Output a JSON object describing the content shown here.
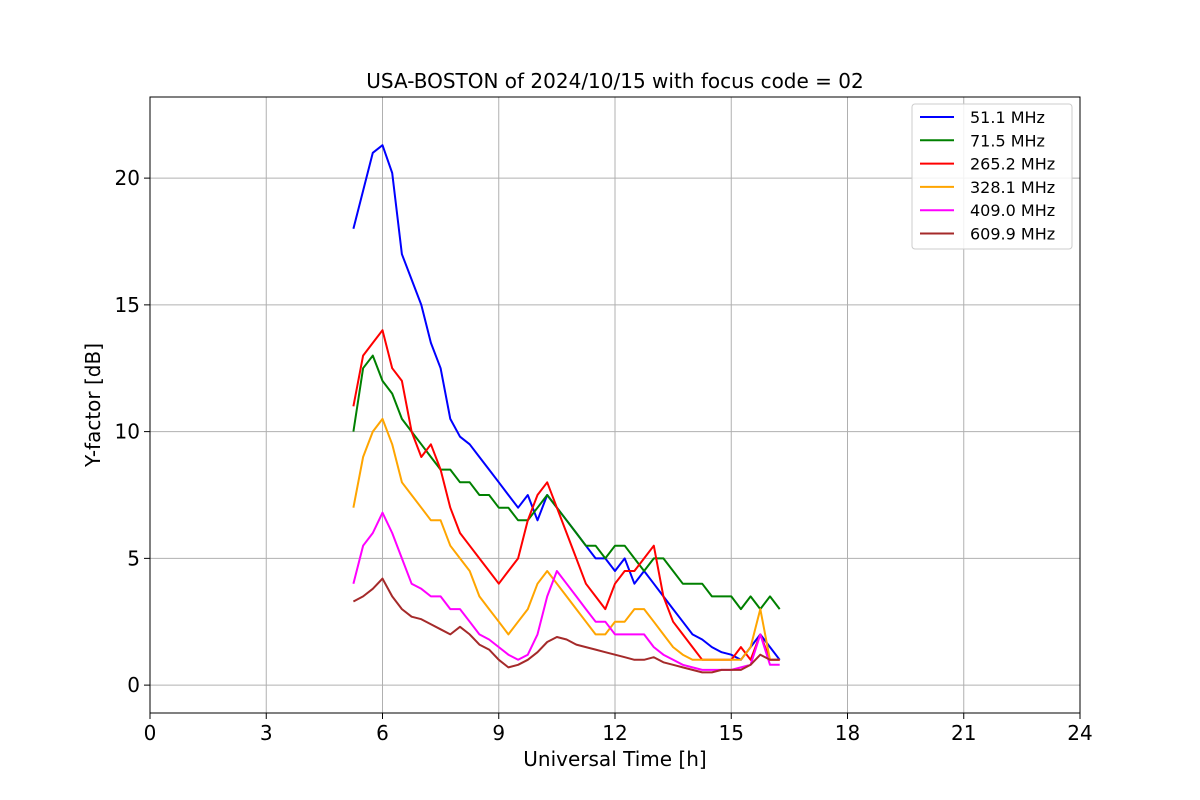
{
  "chart_data": {
    "type": "line",
    "title": "USA-BOSTON of 2024/10/15 with focus code = 02",
    "xlabel": "Universal Time [h]",
    "ylabel": "Y-factor [dB]",
    "xlim": [
      0,
      24
    ],
    "ylim": [
      -1.1,
      23.2
    ],
    "xticks": [
      0,
      3,
      6,
      9,
      12,
      15,
      18,
      21,
      24
    ],
    "yticks": [
      0,
      5,
      10,
      15,
      20
    ],
    "grid": true,
    "legend_position": "top-right",
    "series": [
      {
        "name": "51.1 MHz",
        "color": "#0000ff",
        "x": [
          5.25,
          5.5,
          5.75,
          6.0,
          6.25,
          6.5,
          6.75,
          7.0,
          7.25,
          7.5,
          7.75,
          8.0,
          8.25,
          8.5,
          8.75,
          9.0,
          9.25,
          9.5,
          9.75,
          10.0,
          10.25,
          10.5,
          10.75,
          11.0,
          11.25,
          11.5,
          11.75,
          12.0,
          12.25,
          12.5,
          12.75,
          13.0,
          13.25,
          13.5,
          13.75,
          14.0,
          14.25,
          14.5,
          14.75,
          15.0,
          15.25,
          15.5,
          15.75,
          16.0,
          16.25
        ],
        "y": [
          18.0,
          19.5,
          21.0,
          21.3,
          20.2,
          17.0,
          16.0,
          15.0,
          13.5,
          12.5,
          10.5,
          9.8,
          9.5,
          9.0,
          8.5,
          8.0,
          7.5,
          7.0,
          7.5,
          6.5,
          7.5,
          7.0,
          6.5,
          6.0,
          5.5,
          5.0,
          5.0,
          4.5,
          5.0,
          4.0,
          4.5,
          4.0,
          3.5,
          3.0,
          2.5,
          2.0,
          1.8,
          1.5,
          1.3,
          1.2,
          1.0,
          1.5,
          2.0,
          1.5,
          1.0
        ]
      },
      {
        "name": "71.5 MHz",
        "color": "#008000",
        "x": [
          5.25,
          5.5,
          5.75,
          6.0,
          6.25,
          6.5,
          6.75,
          7.0,
          7.25,
          7.5,
          7.75,
          8.0,
          8.25,
          8.5,
          8.75,
          9.0,
          9.25,
          9.5,
          9.75,
          10.0,
          10.25,
          10.5,
          10.75,
          11.0,
          11.25,
          11.5,
          11.75,
          12.0,
          12.25,
          12.5,
          12.75,
          13.0,
          13.25,
          13.5,
          13.75,
          14.0,
          14.25,
          14.5,
          14.75,
          15.0,
          15.25,
          15.5,
          15.75,
          16.0,
          16.25
        ],
        "y": [
          10.0,
          12.5,
          13.0,
          12.0,
          11.5,
          10.5,
          10.0,
          9.5,
          9.0,
          8.5,
          8.5,
          8.0,
          8.0,
          7.5,
          7.5,
          7.0,
          7.0,
          6.5,
          6.5,
          7.0,
          7.5,
          7.0,
          6.5,
          6.0,
          5.5,
          5.5,
          5.0,
          5.5,
          5.5,
          5.0,
          4.5,
          5.0,
          5.0,
          4.5,
          4.0,
          4.0,
          4.0,
          3.5,
          3.5,
          3.5,
          3.0,
          3.5,
          3.0,
          3.5,
          3.0
        ]
      },
      {
        "name": "265.2 MHz",
        "color": "#ff0000",
        "x": [
          5.25,
          5.5,
          5.75,
          6.0,
          6.25,
          6.5,
          6.75,
          7.0,
          7.25,
          7.5,
          7.75,
          8.0,
          8.25,
          8.5,
          8.75,
          9.0,
          9.25,
          9.5,
          9.75,
          10.0,
          10.25,
          10.5,
          10.75,
          11.0,
          11.25,
          11.5,
          11.75,
          12.0,
          12.25,
          12.5,
          12.75,
          13.0,
          13.25,
          13.5,
          13.75,
          14.0,
          14.25,
          14.5,
          14.75,
          15.0,
          15.25,
          15.5,
          15.75,
          16.0,
          16.25
        ],
        "y": [
          11.0,
          13.0,
          13.5,
          14.0,
          12.5,
          12.0,
          10.0,
          9.0,
          9.5,
          8.5,
          7.0,
          6.0,
          5.5,
          5.0,
          4.5,
          4.0,
          4.5,
          5.0,
          6.5,
          7.5,
          8.0,
          7.0,
          6.0,
          5.0,
          4.0,
          3.5,
          3.0,
          4.0,
          4.5,
          4.5,
          5.0,
          5.5,
          3.5,
          2.5,
          2.0,
          1.5,
          1.0,
          1.0,
          1.0,
          1.0,
          1.5,
          1.0,
          2.0,
          1.0,
          1.0
        ]
      },
      {
        "name": "328.1 MHz",
        "color": "#ffa500",
        "x": [
          5.25,
          5.5,
          5.75,
          6.0,
          6.25,
          6.5,
          6.75,
          7.0,
          7.25,
          7.5,
          7.75,
          8.0,
          8.25,
          8.5,
          8.75,
          9.0,
          9.25,
          9.5,
          9.75,
          10.0,
          10.25,
          10.5,
          10.75,
          11.0,
          11.25,
          11.5,
          11.75,
          12.0,
          12.25,
          12.5,
          12.75,
          13.0,
          13.25,
          13.5,
          13.75,
          14.0,
          14.25,
          14.5,
          14.75,
          15.0,
          15.25,
          15.5,
          15.75,
          16.0,
          16.25
        ],
        "y": [
          7.0,
          9.0,
          10.0,
          10.5,
          9.5,
          8.0,
          7.5,
          7.0,
          6.5,
          6.5,
          5.5,
          5.0,
          4.5,
          3.5,
          3.0,
          2.5,
          2.0,
          2.5,
          3.0,
          4.0,
          4.5,
          4.0,
          3.5,
          3.0,
          2.5,
          2.0,
          2.0,
          2.5,
          2.5,
          3.0,
          3.0,
          2.5,
          2.0,
          1.5,
          1.2,
          1.0,
          1.0,
          1.0,
          1.0,
          1.0,
          1.0,
          1.5,
          3.0,
          1.0,
          1.0
        ]
      },
      {
        "name": "409.0 MHz",
        "color": "#ff00ff",
        "x": [
          5.25,
          5.5,
          5.75,
          6.0,
          6.25,
          6.5,
          6.75,
          7.0,
          7.25,
          7.5,
          7.75,
          8.0,
          8.25,
          8.5,
          8.75,
          9.0,
          9.25,
          9.5,
          9.75,
          10.0,
          10.25,
          10.5,
          10.75,
          11.0,
          11.25,
          11.5,
          11.75,
          12.0,
          12.25,
          12.5,
          12.75,
          13.0,
          13.25,
          13.5,
          13.75,
          14.0,
          14.25,
          14.5,
          14.75,
          15.0,
          15.25,
          15.5,
          15.75,
          16.0,
          16.25
        ],
        "y": [
          4.0,
          5.5,
          6.0,
          6.8,
          6.0,
          5.0,
          4.0,
          3.8,
          3.5,
          3.5,
          3.0,
          3.0,
          2.5,
          2.0,
          1.8,
          1.5,
          1.2,
          1.0,
          1.2,
          2.0,
          3.5,
          4.5,
          4.0,
          3.5,
          3.0,
          2.5,
          2.5,
          2.0,
          2.0,
          2.0,
          2.0,
          1.5,
          1.2,
          1.0,
          0.8,
          0.7,
          0.6,
          0.6,
          0.6,
          0.6,
          0.7,
          0.8,
          2.0,
          0.8,
          0.8
        ]
      },
      {
        "name": "609.9 MHz",
        "color": "#a52a2a",
        "x": [
          5.25,
          5.5,
          5.75,
          6.0,
          6.25,
          6.5,
          6.75,
          7.0,
          7.25,
          7.5,
          7.75,
          8.0,
          8.25,
          8.5,
          8.75,
          9.0,
          9.25,
          9.5,
          9.75,
          10.0,
          10.25,
          10.5,
          10.75,
          11.0,
          11.25,
          11.5,
          11.75,
          12.0,
          12.25,
          12.5,
          12.75,
          13.0,
          13.25,
          13.5,
          13.75,
          14.0,
          14.25,
          14.5,
          14.75,
          15.0,
          15.25,
          15.5,
          15.75,
          16.0,
          16.25
        ],
        "y": [
          3.3,
          3.5,
          3.8,
          4.2,
          3.5,
          3.0,
          2.7,
          2.6,
          2.4,
          2.2,
          2.0,
          2.3,
          2.0,
          1.6,
          1.4,
          1.0,
          0.7,
          0.8,
          1.0,
          1.3,
          1.7,
          1.9,
          1.8,
          1.6,
          1.5,
          1.4,
          1.3,
          1.2,
          1.1,
          1.0,
          1.0,
          1.1,
          0.9,
          0.8,
          0.7,
          0.6,
          0.5,
          0.5,
          0.6,
          0.6,
          0.6,
          0.8,
          1.2,
          1.0,
          1.0
        ]
      }
    ]
  }
}
